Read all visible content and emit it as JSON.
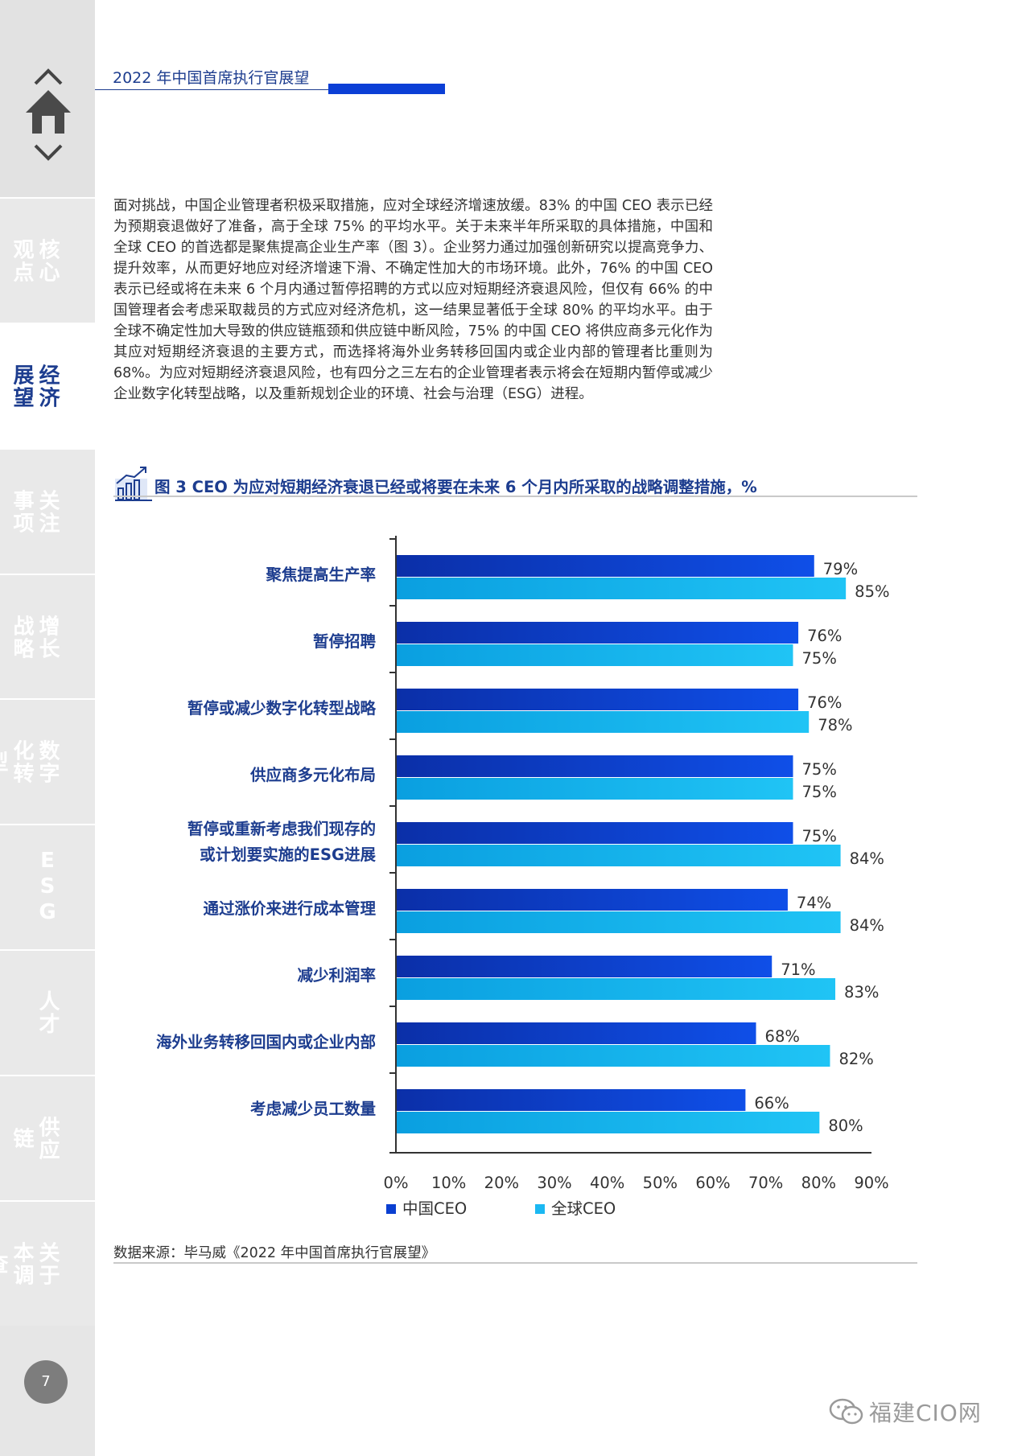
{
  "header": {
    "title": "2022 年中国首席执行官展望"
  },
  "sidebar": {
    "items": [
      {
        "label": "核心观点",
        "active": false
      },
      {
        "label": "经济展望",
        "active": true
      },
      {
        "label": "关注事项",
        "active": false
      },
      {
        "label": "增长战略",
        "active": false
      },
      {
        "label": "数字化转型",
        "active": false
      },
      {
        "label": "ESG",
        "active": false
      },
      {
        "label": "人才",
        "active": false
      },
      {
        "label": "供应链",
        "active": false
      },
      {
        "label": "关于本调查",
        "active": false
      }
    ],
    "page_number": "7"
  },
  "body": {
    "paragraph": "面对挑战，中国企业管理者积极采取措施，应对全球经济增速放缓。83% 的中国 CEO 表示已经为预期衰退做好了准备，高于全球 75% 的平均水平。关于未来半年所采取的具体措施，中国和全球 CEO 的首选都是聚焦提高企业生产率（图 3）。企业努力通过加强创新研究以提高竞争力、提升效率，从而更好地应对经济增速下滑、不确定性加大的市场环境。此外，76% 的中国 CEO 表示已经或将在未来 6 个月内通过暂停招聘的方式以应对短期经济衰退风险，但仅有 66% 的中国管理者会考虑采取裁员的方式应对经济危机，这一结果显著低于全球 80% 的平均水平。由于全球不确定性加大导致的供应链瓶颈和供应链中断风险，75% 的中国 CEO 将供应商多元化作为其应对短期经济衰退的主要方式，而选择将海外业务转移回国内或企业内部的管理者比重则为 68%。为应对短期经济衰退风险，也有四分之三左右的企业管理者表示将会在短期内暂停或减少企业数字化转型战略，以及重新规划企业的环境、社会与治理（ESG）进程。"
  },
  "figure": {
    "title": "图 3  CEO 为应对短期经济衰退已经或将要在未来 6 个月内所采取的战略调整措施，%",
    "source": "数据来源：毕马威《2022 年中国首席执行官展望》"
  },
  "chart_data": {
    "type": "bar",
    "orientation": "horizontal",
    "title": "图 3  CEO 为应对短期经济衰退已经或将要在未来 6 个月内所采取的战略调整措施，%",
    "categories": [
      "聚焦提高生产率",
      "暂停招聘",
      "暂停或减少数字化转型战略",
      "供应商多元化布局",
      "暂停或重新考虑我们现存的\n或计划要实施的ESG进展",
      "通过涨价来进行成本管理",
      "减少利润率",
      "海外业务转移回国内或企业内部",
      "考虑减少员工数量"
    ],
    "series": [
      {
        "name": "中国CEO",
        "values": [
          79,
          76,
          76,
          75,
          75,
          74,
          71,
          68,
          66
        ],
        "labels": [
          "79%",
          "76%",
          "76%",
          "75%",
          "75%",
          "74%",
          "71%",
          "68%",
          "66%"
        ],
        "color": "#0a3fd1"
      },
      {
        "name": "全球CEO",
        "values": [
          85,
          75,
          78,
          75,
          84,
          84,
          83,
          82,
          80
        ],
        "labels": [
          "85%",
          "75%",
          "78%",
          "75%",
          "84%",
          "84%",
          "83%",
          "82%",
          "80%"
        ],
        "color": "#1bb8f2"
      }
    ],
    "xlim": [
      0,
      90
    ],
    "xticks": [
      "0%",
      "10%",
      "20%",
      "30%",
      "40%",
      "50%",
      "60%",
      "70%",
      "80%",
      "90%"
    ],
    "grid": false,
    "legend": "bottom"
  },
  "watermark": {
    "text": "福建CIO网"
  }
}
